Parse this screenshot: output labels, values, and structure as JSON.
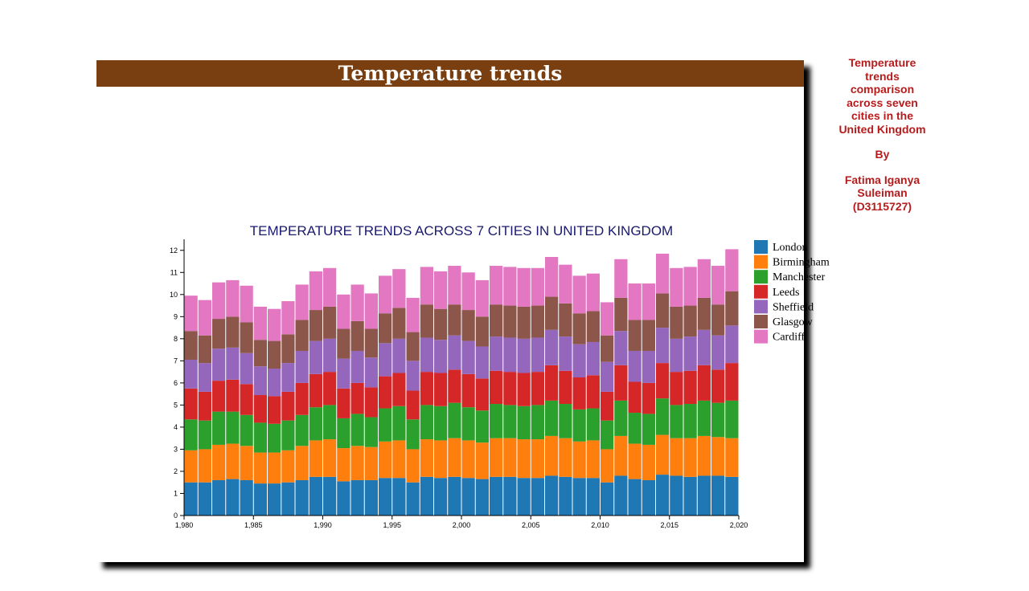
{
  "header": {
    "title": "Temperature trends"
  },
  "sidebar": {
    "description": "Temperature trends comparison across seven cities in the United Kingdom",
    "by_label": "By",
    "author": "Fatima Iganya Suleiman (D3115727)"
  },
  "chart_data": {
    "type": "bar",
    "stacked": true,
    "title": "TEMPERATURE TRENDS ACROSS 7 CITIES IN UNITED KINGDOM",
    "xlabel": "",
    "ylabel": "",
    "ylim": [
      0,
      12.5
    ],
    "xlim": [
      1980,
      2020
    ],
    "x_ticks": [
      "1,980",
      "1,985",
      "1,990",
      "1,995",
      "2,000",
      "2,005",
      "2,010",
      "2,015",
      "2,020"
    ],
    "y_ticks": [
      0,
      1,
      2,
      3,
      4,
      5,
      6,
      7,
      8,
      9,
      10,
      11,
      12
    ],
    "legend_position": "right",
    "grid": false,
    "colors": [
      "#1f77b4",
      "#ff7f0e",
      "#2ca02c",
      "#d62728",
      "#9467bd",
      "#8c564b",
      "#e377c2"
    ],
    "categories": [
      1980,
      1981,
      1982,
      1983,
      1984,
      1985,
      1986,
      1987,
      1988,
      1989,
      1990,
      1991,
      1992,
      1993,
      1994,
      1995,
      1996,
      1997,
      1998,
      1999,
      2000,
      2001,
      2002,
      2003,
      2004,
      2005,
      2006,
      2007,
      2008,
      2009,
      2010,
      2011,
      2012,
      2013,
      2014,
      2015,
      2016,
      2017,
      2018,
      2019
    ],
    "series": [
      {
        "name": "London",
        "values": [
          1.5,
          1.5,
          1.6,
          1.65,
          1.6,
          1.45,
          1.45,
          1.5,
          1.6,
          1.75,
          1.75,
          1.55,
          1.6,
          1.6,
          1.7,
          1.7,
          1.5,
          1.75,
          1.7,
          1.75,
          1.7,
          1.65,
          1.75,
          1.75,
          1.7,
          1.7,
          1.8,
          1.75,
          1.7,
          1.7,
          1.5,
          1.8,
          1.65,
          1.6,
          1.85,
          1.8,
          1.75,
          1.8,
          1.8,
          1.75
        ]
      },
      {
        "name": "Birmingham",
        "values": [
          1.45,
          1.5,
          1.6,
          1.6,
          1.55,
          1.4,
          1.4,
          1.45,
          1.55,
          1.65,
          1.7,
          1.5,
          1.55,
          1.5,
          1.65,
          1.7,
          1.5,
          1.7,
          1.7,
          1.75,
          1.7,
          1.65,
          1.75,
          1.75,
          1.75,
          1.75,
          1.8,
          1.75,
          1.65,
          1.7,
          1.5,
          1.8,
          1.6,
          1.6,
          1.8,
          1.7,
          1.75,
          1.8,
          1.75,
          1.75
        ]
      },
      {
        "name": "Manchester",
        "values": [
          1.4,
          1.3,
          1.5,
          1.45,
          1.4,
          1.35,
          1.3,
          1.35,
          1.4,
          1.5,
          1.55,
          1.35,
          1.45,
          1.35,
          1.5,
          1.55,
          1.35,
          1.55,
          1.55,
          1.6,
          1.5,
          1.45,
          1.55,
          1.5,
          1.5,
          1.55,
          1.6,
          1.55,
          1.45,
          1.45,
          1.3,
          1.6,
          1.4,
          1.4,
          1.65,
          1.5,
          1.55,
          1.6,
          1.55,
          1.7
        ]
      },
      {
        "name": "Leeds",
        "values": [
          1.4,
          1.3,
          1.4,
          1.45,
          1.4,
          1.25,
          1.25,
          1.3,
          1.45,
          1.5,
          1.5,
          1.35,
          1.4,
          1.35,
          1.45,
          1.5,
          1.3,
          1.5,
          1.5,
          1.5,
          1.5,
          1.45,
          1.5,
          1.5,
          1.5,
          1.5,
          1.6,
          1.5,
          1.45,
          1.5,
          1.3,
          1.6,
          1.4,
          1.4,
          1.6,
          1.5,
          1.5,
          1.6,
          1.5,
          1.7
        ]
      },
      {
        "name": "Sheffield",
        "values": [
          1.3,
          1.3,
          1.45,
          1.45,
          1.4,
          1.3,
          1.25,
          1.3,
          1.45,
          1.5,
          1.5,
          1.35,
          1.45,
          1.35,
          1.5,
          1.55,
          1.35,
          1.55,
          1.5,
          1.55,
          1.5,
          1.45,
          1.55,
          1.55,
          1.55,
          1.55,
          1.6,
          1.55,
          1.5,
          1.5,
          1.35,
          1.55,
          1.4,
          1.45,
          1.6,
          1.5,
          1.55,
          1.6,
          1.55,
          1.7
        ]
      },
      {
        "name": "Glasgow",
        "values": [
          1.3,
          1.25,
          1.35,
          1.4,
          1.4,
          1.2,
          1.25,
          1.3,
          1.4,
          1.4,
          1.45,
          1.35,
          1.35,
          1.3,
          1.35,
          1.4,
          1.3,
          1.5,
          1.4,
          1.4,
          1.4,
          1.35,
          1.45,
          1.45,
          1.45,
          1.45,
          1.5,
          1.5,
          1.4,
          1.4,
          1.2,
          1.5,
          1.4,
          1.4,
          1.55,
          1.45,
          1.4,
          1.45,
          1.4,
          1.55
        ]
      },
      {
        "name": "Cardiff",
        "values": [
          1.6,
          1.6,
          1.65,
          1.65,
          1.65,
          1.5,
          1.45,
          1.5,
          1.6,
          1.75,
          1.75,
          1.55,
          1.65,
          1.6,
          1.7,
          1.75,
          1.55,
          1.7,
          1.7,
          1.75,
          1.7,
          1.65,
          1.75,
          1.75,
          1.75,
          1.7,
          1.8,
          1.75,
          1.7,
          1.7,
          1.5,
          1.75,
          1.65,
          1.65,
          1.8,
          1.75,
          1.75,
          1.75,
          1.75,
          1.9
        ]
      }
    ]
  }
}
